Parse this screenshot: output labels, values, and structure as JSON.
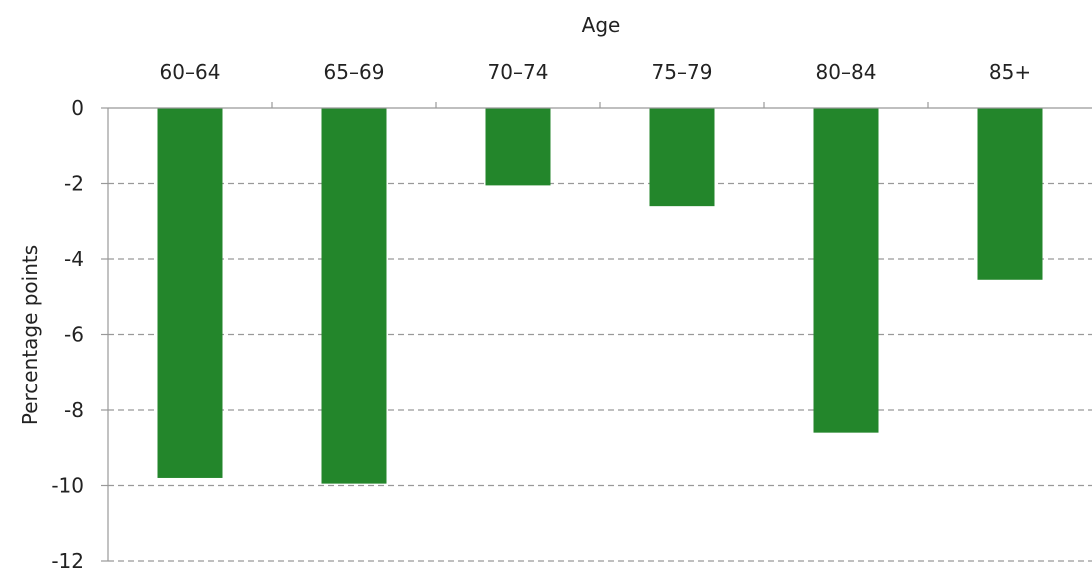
{
  "chart_data": {
    "type": "bar",
    "title": "",
    "xlabel": "Age",
    "ylabel": "Percentage points",
    "categories": [
      "60–64",
      "65–69",
      "70–74",
      "75–79",
      "80–84",
      "85+"
    ],
    "values": [
      -9.8,
      -9.95,
      -2.05,
      -2.6,
      -8.6,
      -4.55
    ],
    "ylim": [
      -12,
      0
    ],
    "yticks": [
      0,
      -2,
      -4,
      -6,
      -8,
      -10,
      -12
    ],
    "ytick_labels": [
      "0",
      "-2",
      "-4",
      "-6",
      "-8",
      "-10",
      "-12"
    ],
    "grid": true,
    "grid_style": "dashed horizontal",
    "x_axis_position": "top",
    "bar_color": "#23862b",
    "grid_color": "#999999",
    "axis_color": "#999999"
  }
}
